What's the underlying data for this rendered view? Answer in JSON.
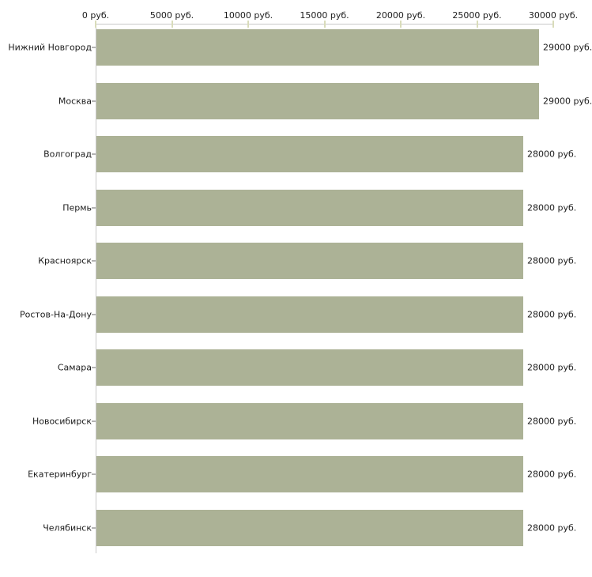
{
  "chart_data": {
    "type": "bar",
    "orientation": "horizontal",
    "unit": "руб.",
    "grid": false,
    "x_axis": {
      "position": "top",
      "range": [
        0,
        30000
      ],
      "tick_interval": 5000,
      "ticks": [
        {
          "value": 0,
          "label": "0 руб."
        },
        {
          "value": 5000,
          "label": "5000 руб."
        },
        {
          "value": 10000,
          "label": "10000 руб."
        },
        {
          "value": 15000,
          "label": "15000 руб."
        },
        {
          "value": 20000,
          "label": "20000 руб."
        },
        {
          "value": 25000,
          "label": "25000 руб."
        },
        {
          "value": 30000,
          "label": "30000 руб."
        }
      ]
    },
    "bars": [
      {
        "category": "Нижний Новгород",
        "value": 29000,
        "label": "29000 руб."
      },
      {
        "category": "Москва",
        "value": 29000,
        "label": "29000 руб."
      },
      {
        "category": "Волгоград",
        "value": 28000,
        "label": "28000 руб."
      },
      {
        "category": "Пермь",
        "value": 28000,
        "label": "28000 руб."
      },
      {
        "category": "Красноярск",
        "value": 28000,
        "label": "28000 руб."
      },
      {
        "category": "Ростов-На-Дону",
        "value": 28000,
        "label": "28000 руб."
      },
      {
        "category": "Самара",
        "value": 28000,
        "label": "28000 руб."
      },
      {
        "category": "Новосибирск",
        "value": 28000,
        "label": "28000 руб."
      },
      {
        "category": "Екатеринбург",
        "value": 28000,
        "label": "28000 руб."
      },
      {
        "category": "Челябинск",
        "value": 28000,
        "label": "28000 руб."
      }
    ],
    "colors": {
      "bar": "#acb296",
      "axis_line": "#c9c9c9",
      "x_tick_mark": "#d9dcba",
      "y_tick_mark": "#b3b3b3",
      "text": "#1c1c1c",
      "background": "#ffffff"
    }
  }
}
